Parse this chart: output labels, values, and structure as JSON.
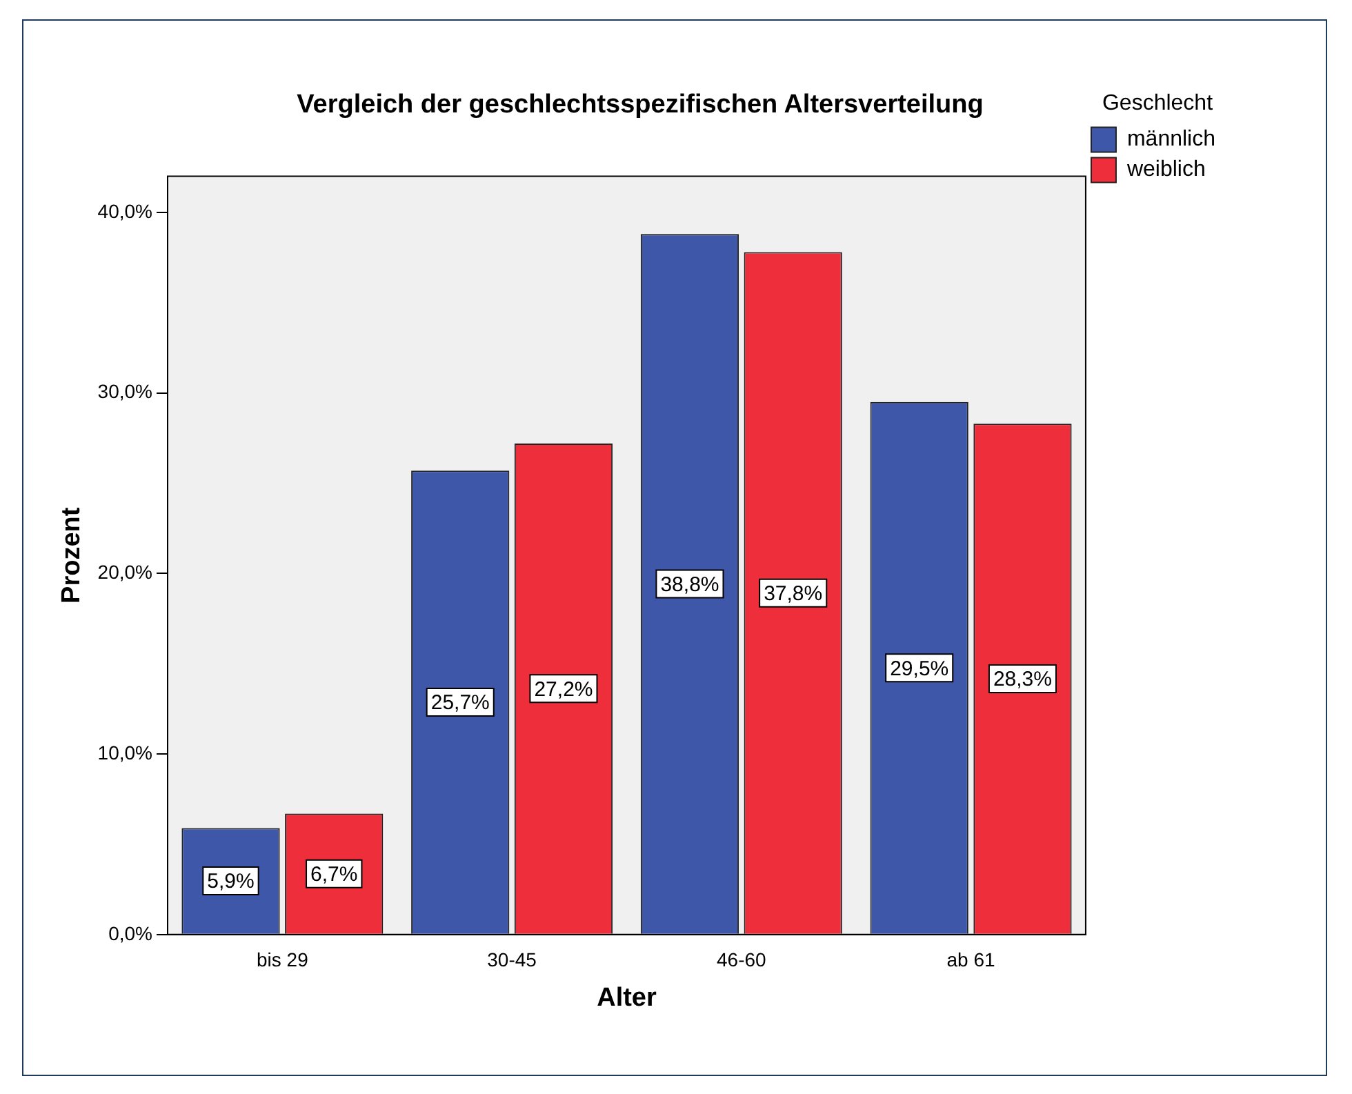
{
  "chart_data": {
    "type": "bar",
    "title": "Vergleich der geschlechtsspezifischen Altersverteilung",
    "xlabel": "Alter",
    "ylabel": "Prozent",
    "legend_title": "Geschlecht",
    "legend": "top right",
    "grid": false,
    "categories": [
      "bis 29",
      "30-45",
      "46-60",
      "ab 61"
    ],
    "series": [
      {
        "name": "männlich",
        "color": "#3f57a8",
        "values": [
          5.9,
          25.7,
          38.8,
          29.5
        ],
        "value_labels": [
          "5,9%",
          "25,7%",
          "38,8%",
          "29,5%"
        ]
      },
      {
        "name": "weiblich",
        "color": "#ee2e3a",
        "values": [
          6.7,
          27.2,
          37.8,
          28.3
        ],
        "value_labels": [
          "6,7%",
          "27,2%",
          "37,8%",
          "28,3%"
        ]
      }
    ],
    "ylim": [
      0,
      42
    ],
    "yticks": [
      {
        "value": 0,
        "label": "0,0%"
      },
      {
        "value": 10,
        "label": "10,0%"
      },
      {
        "value": 20,
        "label": "20,0%"
      },
      {
        "value": 30,
        "label": "30,0%"
      },
      {
        "value": 40,
        "label": "40,0%"
      }
    ]
  }
}
